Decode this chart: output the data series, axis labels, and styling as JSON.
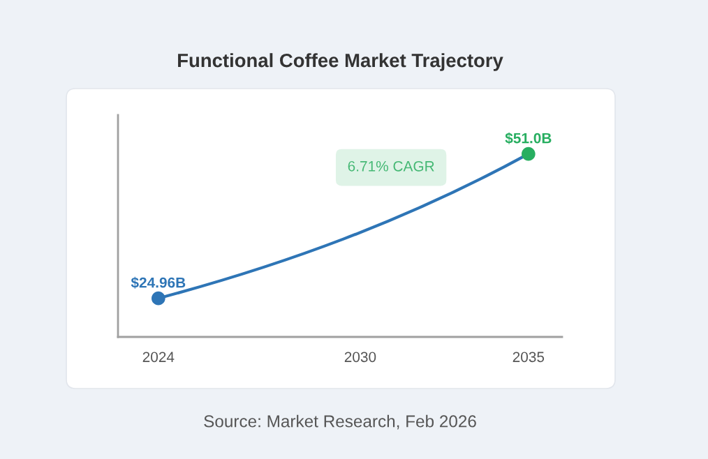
{
  "chart_data": {
    "type": "line",
    "title": "Functional Coffee Market Trajectory",
    "annotations": [
      "6.71% CAGR",
      "Source: Market Research, Feb 2026"
    ],
    "series": [
      {
        "color": "#2e75b6",
        "colors": [
          "#2e75b6",
          "#27ae60"
        ],
        "x": [
          2024,
          2035
        ],
        "values": [
          24.96,
          51.0
        ],
        "value_labels": [
          "$24.96B",
          "$51.0B"
        ]
      }
    ],
    "marker": "circle",
    "line_style": "solid",
    "xlim": [
      2022.8,
      2036.0
    ],
    "xticks": [
      2024,
      2030,
      2035
    ],
    "ylim": [
      18,
      58
    ],
    "tick_labels": "x"
  }
}
